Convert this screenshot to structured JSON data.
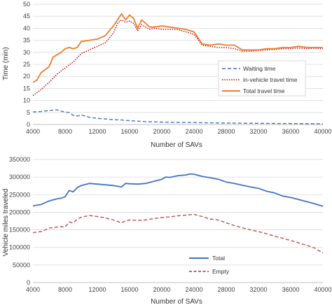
{
  "chart_data": [
    {
      "type": "line",
      "xlabel": "Number of SAVs",
      "ylabel": "Time (min)",
      "xlim": [
        4000,
        40000
      ],
      "ylim": [
        0,
        50
      ],
      "xticks": [
        "4000",
        "8000",
        "12000",
        "16000",
        "20000",
        "24000",
        "28000",
        "32000",
        "36000",
        "40000"
      ],
      "yticks": [
        "0",
        "5",
        "10",
        "15",
        "20",
        "25",
        "30",
        "35",
        "40",
        "45",
        "50"
      ],
      "grid": "horizontal",
      "legend_position": "center-right",
      "series": [
        {
          "name": "Waiting time",
          "color": "#4472c4",
          "style": "dashed",
          "points": [
            [
              4000,
              5.2
            ],
            [
              5000,
              5.4
            ],
            [
              6000,
              5.8
            ],
            [
              7000,
              6.1
            ],
            [
              7500,
              5.5
            ],
            [
              8000,
              5.2
            ],
            [
              8500,
              5.0
            ],
            [
              9000,
              3.8
            ],
            [
              9500,
              3.5
            ],
            [
              10000,
              4.0
            ],
            [
              11000,
              3.0
            ],
            [
              12000,
              2.6
            ],
            [
              13000,
              2.3
            ],
            [
              14000,
              2.0
            ],
            [
              15000,
              1.9
            ],
            [
              16000,
              1.6
            ],
            [
              17000,
              1.4
            ],
            [
              18000,
              1.2
            ],
            [
              19000,
              1.1
            ],
            [
              20000,
              1.0
            ],
            [
              22000,
              0.9
            ],
            [
              24000,
              0.8
            ],
            [
              26000,
              0.7
            ],
            [
              28000,
              0.6
            ],
            [
              30000,
              0.55
            ],
            [
              32000,
              0.5
            ],
            [
              34000,
              0.45
            ],
            [
              36000,
              0.4
            ],
            [
              38000,
              0.35
            ],
            [
              40000,
              0.3
            ]
          ]
        },
        {
          "name": "in-vehicle travel time",
          "color": "#c00000",
          "style": "dotted",
          "points": [
            [
              4000,
              12.0
            ],
            [
              5000,
              14.5
            ],
            [
              6000,
              17.5
            ],
            [
              7000,
              21.0
            ],
            [
              8000,
              23.5
            ],
            [
              9000,
              26.0
            ],
            [
              10000,
              29.5
            ],
            [
              11000,
              31.0
            ],
            [
              12000,
              32.5
            ],
            [
              13000,
              34.0
            ],
            [
              14000,
              38.0
            ],
            [
              14500,
              42.0
            ],
            [
              15000,
              43.5
            ],
            [
              15500,
              42.5
            ],
            [
              16000,
              43.0
            ],
            [
              16500,
              42.0
            ],
            [
              17000,
              39.0
            ],
            [
              17500,
              41.5
            ],
            [
              18000,
              40.5
            ],
            [
              18500,
              39.5
            ],
            [
              19000,
              40.0
            ],
            [
              20000,
              39.5
            ],
            [
              21000,
              39.5
            ],
            [
              22000,
              39.5
            ],
            [
              23000,
              38.5
            ],
            [
              24000,
              37.5
            ],
            [
              25000,
              33.0
            ],
            [
              26000,
              32.5
            ],
            [
              27000,
              32.0
            ],
            [
              28000,
              32.0
            ],
            [
              29000,
              31.5
            ],
            [
              30000,
              30.5
            ],
            [
              31000,
              30.5
            ],
            [
              32000,
              30.8
            ],
            [
              33000,
              31.0
            ],
            [
              34000,
              31.2
            ],
            [
              35000,
              31.5
            ],
            [
              36000,
              31.5
            ],
            [
              37000,
              31.8
            ],
            [
              38000,
              31.5
            ],
            [
              39000,
              31.7
            ],
            [
              40000,
              31.5
            ]
          ]
        },
        {
          "name": "Total travel time",
          "color": "#ed7d31",
          "style": "solid",
          "points": [
            [
              4000,
              17.5
            ],
            [
              4500,
              18.5
            ],
            [
              5000,
              21.5
            ],
            [
              6000,
              24.0
            ],
            [
              6500,
              28.0
            ],
            [
              7000,
              29.0
            ],
            [
              7500,
              30.0
            ],
            [
              8000,
              31.5
            ],
            [
              8500,
              32.0
            ],
            [
              9000,
              31.5
            ],
            [
              9500,
              32.0
            ],
            [
              10000,
              34.5
            ],
            [
              11000,
              35.0
            ],
            [
              12000,
              35.5
            ],
            [
              13000,
              37.0
            ],
            [
              14000,
              41.0
            ],
            [
              14500,
              43.5
            ],
            [
              15000,
              46.0
            ],
            [
              15500,
              43.5
            ],
            [
              16000,
              45.5
            ],
            [
              16500,
              44.0
            ],
            [
              17000,
              40.0
            ],
            [
              17500,
              43.5
            ],
            [
              18000,
              42.0
            ],
            [
              18500,
              40.5
            ],
            [
              19000,
              40.5
            ],
            [
              20000,
              41.0
            ],
            [
              21000,
              40.5
            ],
            [
              22000,
              40.0
            ],
            [
              23000,
              39.5
            ],
            [
              24000,
              38.5
            ],
            [
              25000,
              33.5
            ],
            [
              26000,
              33.0
            ],
            [
              27000,
              33.5
            ],
            [
              28000,
              33.0
            ],
            [
              29000,
              33.0
            ],
            [
              30000,
              31.0
            ],
            [
              31000,
              31.0
            ],
            [
              32000,
              31.0
            ],
            [
              33000,
              31.5
            ],
            [
              34000,
              31.5
            ],
            [
              35000,
              32.0
            ],
            [
              36000,
              32.0
            ],
            [
              37000,
              32.5
            ],
            [
              38000,
              32.0
            ],
            [
              39000,
              32.0
            ],
            [
              40000,
              32.0
            ]
          ]
        }
      ]
    },
    {
      "type": "line",
      "xlabel": "Number of SAVs",
      "ylabel": "Vehicle miles traveled",
      "xlim": [
        4000,
        40000
      ],
      "ylim": [
        0,
        350000
      ],
      "xticks": [
        "4000",
        "8000",
        "12000",
        "16000",
        "20000",
        "24000",
        "28000",
        "32000",
        "36000",
        "40000"
      ],
      "yticks": [
        "0",
        "50000",
        "100000",
        "150000",
        "200000",
        "250000",
        "300000",
        "350000"
      ],
      "grid": "horizontal",
      "legend_position": "bottom-center",
      "series": [
        {
          "name": "Total",
          "color": "#4472c4",
          "style": "solid",
          "points": [
            [
              4000,
              218000
            ],
            [
              5000,
              222000
            ],
            [
              6000,
              232000
            ],
            [
              7000,
              238000
            ],
            [
              7500,
              240000
            ],
            [
              8000,
              244000
            ],
            [
              8500,
              262000
            ],
            [
              9000,
              258000
            ],
            [
              9500,
              270000
            ],
            [
              10000,
              276000
            ],
            [
              11000,
              282000
            ],
            [
              12000,
              280000
            ],
            [
              13000,
              278000
            ],
            [
              14000,
              276000
            ],
            [
              15000,
              272000
            ],
            [
              15500,
              282000
            ],
            [
              16000,
              281000
            ],
            [
              17000,
              280000
            ],
            [
              18000,
              282000
            ],
            [
              19000,
              288000
            ],
            [
              20000,
              294000
            ],
            [
              20500,
              300000
            ],
            [
              21000,
              299000
            ],
            [
              22000,
              304000
            ],
            [
              23000,
              306000
            ],
            [
              23500,
              309000
            ],
            [
              24000,
              308000
            ],
            [
              25000,
              302000
            ],
            [
              26000,
              298000
            ],
            [
              27000,
              294000
            ],
            [
              28000,
              286000
            ],
            [
              29000,
              282000
            ],
            [
              30000,
              277000
            ],
            [
              31000,
              272000
            ],
            [
              32000,
              268000
            ],
            [
              33000,
              260000
            ],
            [
              34000,
              255000
            ],
            [
              35000,
              246000
            ],
            [
              36000,
              242000
            ],
            [
              37000,
              236000
            ],
            [
              38000,
              230000
            ],
            [
              39000,
              224000
            ],
            [
              40000,
              217000
            ]
          ]
        },
        {
          "name": "Empty",
          "color": "#c0504d",
          "style": "dashed",
          "points": [
            [
              4000,
              142000
            ],
            [
              5000,
              145000
            ],
            [
              6000,
              155000
            ],
            [
              7000,
              158000
            ],
            [
              7500,
              159000
            ],
            [
              8000,
              158000
            ],
            [
              8500,
              172000
            ],
            [
              9000,
              170000
            ],
            [
              9500,
              180000
            ],
            [
              10000,
              186000
            ],
            [
              11000,
              191000
            ],
            [
              12000,
              188000
            ],
            [
              13000,
              184000
            ],
            [
              14000,
              178000
            ],
            [
              15000,
              170000
            ],
            [
              15500,
              176000
            ],
            [
              16000,
              178000
            ],
            [
              17000,
              177000
            ],
            [
              18000,
              178000
            ],
            [
              19000,
              182000
            ],
            [
              20000,
              185000
            ],
            [
              21000,
              187000
            ],
            [
              22000,
              190000
            ],
            [
              23000,
              192000
            ],
            [
              24000,
              194000
            ],
            [
              25000,
              188000
            ],
            [
              26000,
              181000
            ],
            [
              27000,
              178000
            ],
            [
              28000,
              170000
            ],
            [
              29000,
              162000
            ],
            [
              30000,
              156000
            ],
            [
              31000,
              150000
            ],
            [
              32000,
              145000
            ],
            [
              33000,
              139000
            ],
            [
              34000,
              132000
            ],
            [
              35000,
              126000
            ],
            [
              36000,
              120000
            ],
            [
              37000,
              113000
            ],
            [
              38000,
              106000
            ],
            [
              39000,
              98000
            ],
            [
              40000,
              84000
            ]
          ]
        }
      ]
    }
  ]
}
